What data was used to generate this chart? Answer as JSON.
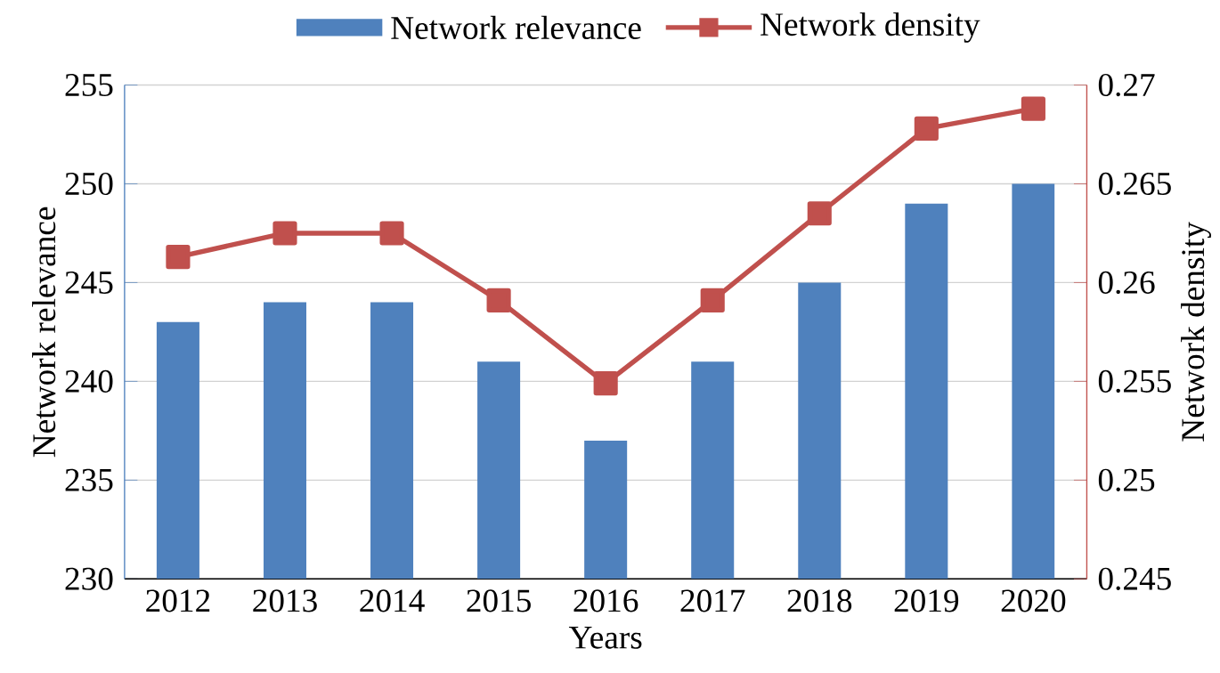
{
  "chart_data": {
    "type": "bar",
    "xlabel": "Years",
    "ylabel": "Network relevance",
    "y2label": "Network density",
    "categories": [
      "2012",
      "2013",
      "2014",
      "2015",
      "2016",
      "2017",
      "2018",
      "2019",
      "2020"
    ],
    "series": [
      {
        "name": "Network relevance",
        "color": "#4f81bd",
        "values": [
          243,
          244,
          244,
          241,
          237,
          241,
          245,
          249,
          250
        ]
      },
      {
        "name": "Network density",
        "type": "line",
        "axis": "y2",
        "color": "#c0504d",
        "marker": "square",
        "values": [
          0.2613,
          0.2625,
          0.2625,
          0.2591,
          0.2549,
          0.2591,
          0.2635,
          0.2678,
          0.2688
        ]
      }
    ],
    "ylim": [
      230,
      255
    ],
    "yticks": [
      230,
      235,
      240,
      245,
      250,
      255
    ],
    "y2lim": [
      0.245,
      0.27
    ],
    "y2ticks": [
      0.245,
      0.25,
      0.255,
      0.26,
      0.265,
      0.27
    ],
    "grid": "y",
    "legend": "top"
  }
}
